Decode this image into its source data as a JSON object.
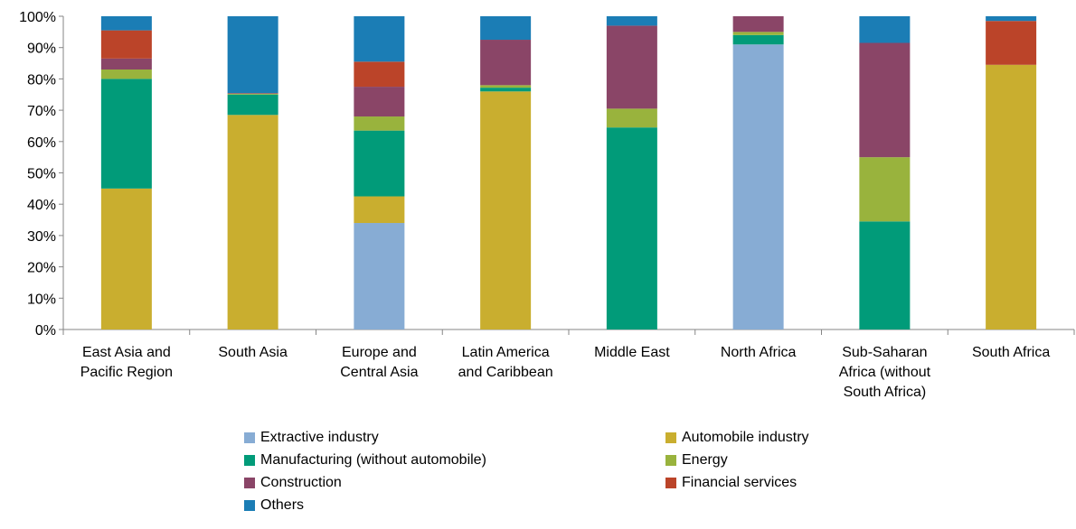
{
  "chart_data": {
    "type": "bar",
    "stacked": true,
    "percent": true,
    "categories": [
      "East Asia and Pacific Region",
      "South Asia",
      "Europe and Central Asia",
      "Latin America and Caribbean",
      "Middle East",
      "North Africa",
      "Sub-Saharan Africa (without South Africa)",
      "South Africa"
    ],
    "category_lines": [
      [
        "East Asia and",
        "Pacific Region"
      ],
      [
        "South Asia"
      ],
      [
        "Europe and",
        "Central Asia"
      ],
      [
        "Latin America",
        "and Caribbean"
      ],
      [
        "Middle East"
      ],
      [
        "North Africa"
      ],
      [
        "Sub-Saharan",
        "Africa (without",
        "South Africa)"
      ],
      [
        "South Africa"
      ]
    ],
    "series": [
      {
        "name": "Extractive industry",
        "color": "#87ACD4",
        "values": [
          0,
          0,
          34,
          0,
          0,
          91,
          0,
          0
        ]
      },
      {
        "name": "Automobile industry",
        "color": "#C9AE2F",
        "values": [
          45,
          68.5,
          8.5,
          76,
          0,
          0,
          0,
          84.5
        ]
      },
      {
        "name": "Manufacturing (without automobile)",
        "color": "#019B79",
        "values": [
          35,
          6.5,
          21,
          1.2,
          64.5,
          3,
          34.5,
          0
        ]
      },
      {
        "name": "Energy",
        "color": "#99B33D",
        "values": [
          3,
          0.3,
          4.5,
          0.8,
          6,
          1,
          20.5,
          0
        ]
      },
      {
        "name": "Construction",
        "color": "#8A4567",
        "values": [
          3.5,
          0.2,
          9.5,
          14.5,
          26.5,
          5,
          36.5,
          0
        ]
      },
      {
        "name": "Financial services",
        "color": "#BB4429",
        "values": [
          9,
          0,
          8,
          0,
          0,
          0,
          0,
          14
        ]
      },
      {
        "name": "Others",
        "color": "#1B7DB5",
        "values": [
          4.5,
          24.5,
          14.5,
          7.5,
          3,
          0,
          8.5,
          1.5
        ]
      }
    ],
    "ylim": [
      0,
      100
    ],
    "yticks": [
      "0%",
      "10%",
      "20%",
      "30%",
      "40%",
      "50%",
      "60%",
      "70%",
      "80%",
      "90%",
      "100%"
    ],
    "grid": false,
    "legend_position": "bottom",
    "title": "",
    "xlabel": "",
    "ylabel": ""
  }
}
